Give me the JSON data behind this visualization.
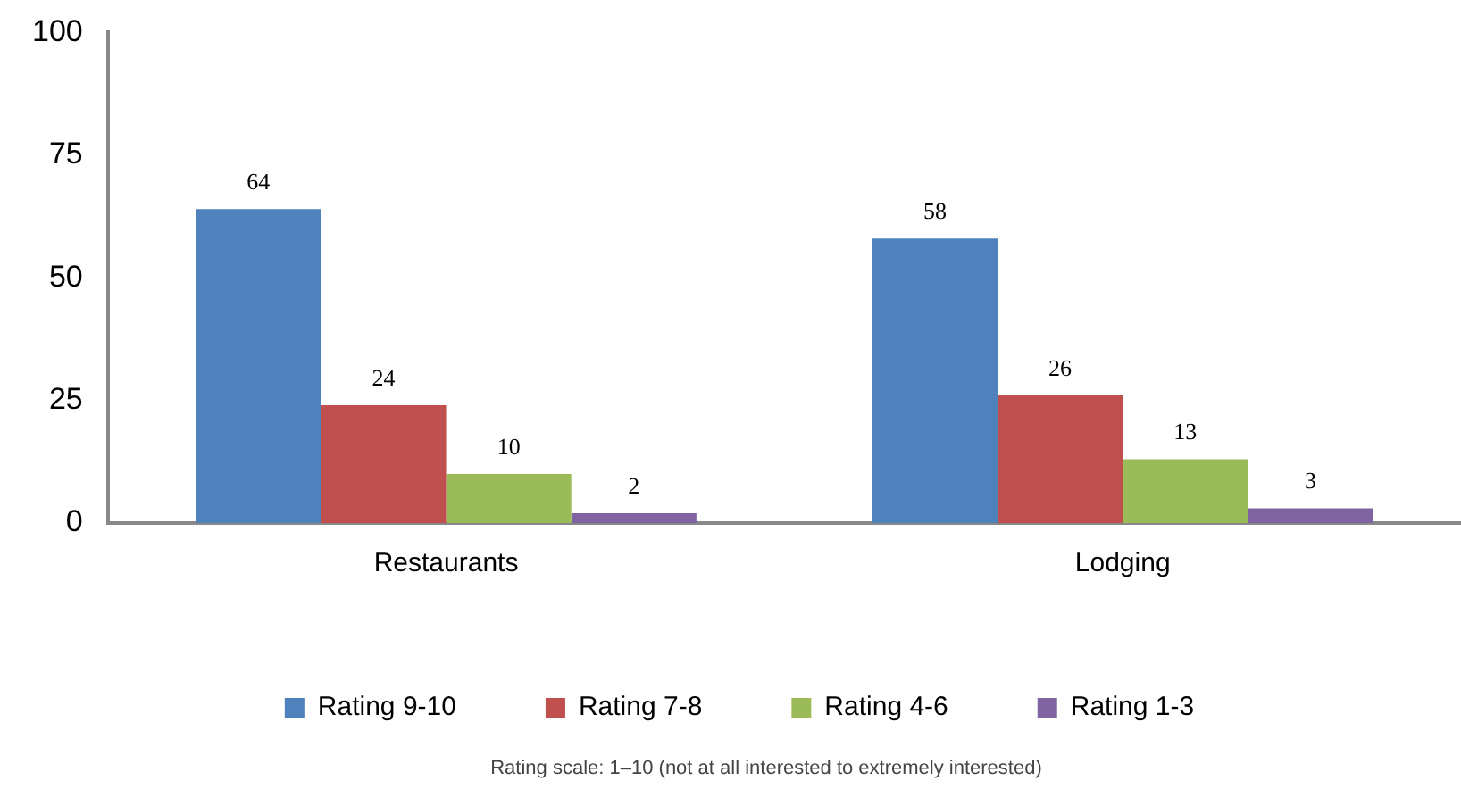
{
  "chart_data": {
    "type": "bar",
    "categories": [
      "Restaurants",
      "Lodging"
    ],
    "series": [
      {
        "name": "Rating 9-10",
        "color": "#4f81bd",
        "values": [
          64,
          58
        ]
      },
      {
        "name": "Rating 7-8",
        "color": "#c0504d",
        "values": [
          24,
          26
        ]
      },
      {
        "name": "Rating 4-6",
        "color": "#9bbb59",
        "values": [
          10,
          13
        ]
      },
      {
        "name": "Rating 1-3",
        "color": "#8064a2",
        "values": [
          2,
          3
        ]
      }
    ],
    "ylim": [
      0,
      100
    ],
    "yticks": [
      0,
      25,
      50,
      75,
      100
    ],
    "grid": false,
    "legend": "bottom",
    "data_labels": true,
    "annotations": [
      "Rating scale: 1–10 (not at all interested to extremely interested)"
    ]
  }
}
